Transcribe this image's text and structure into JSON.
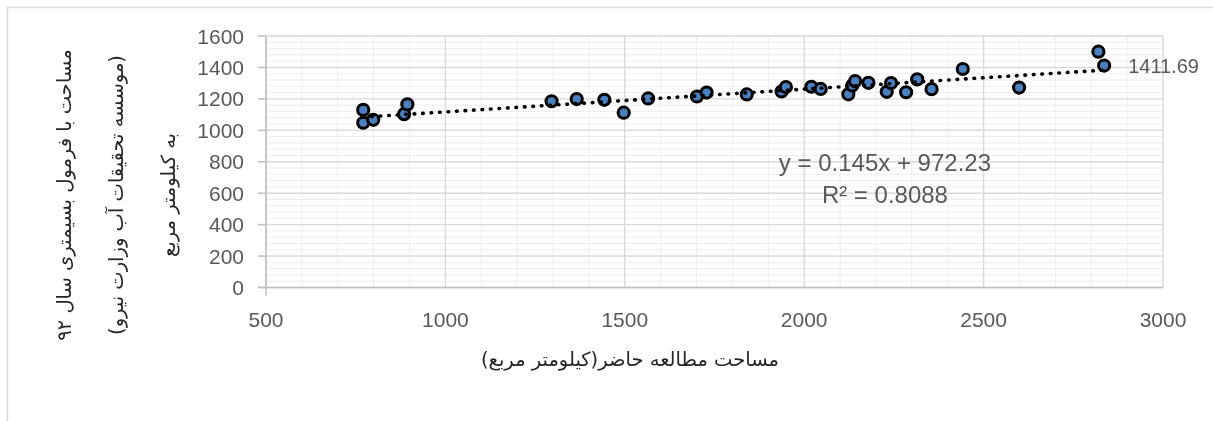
{
  "chart_data": {
    "type": "scatter",
    "xlabel": "مساحت مطالعه حاضر(کیلومتر مربع)",
    "ylabel": "مساحت با فرمول بسیمتری سال ۹۲\n(موسسه تحقیقات آب وزارت نیرو)\nبه کیلومتر مربع",
    "xlim": [
      500,
      3000
    ],
    "xticks": [
      500,
      1000,
      1500,
      2000,
      2500,
      3000
    ],
    "ylim": [
      0,
      1600
    ],
    "yticks": [
      0,
      200,
      400,
      600,
      800,
      1000,
      1200,
      1400,
      1600
    ],
    "grid": true,
    "marker": "circle",
    "series": [
      {
        "color": "#4a80c0",
        "x": [
          771,
          771,
          799,
          885,
          894,
          1296,
          1366,
          1443,
          1497,
          1565,
          1701,
          1728,
          1840,
          1937,
          1949,
          2020,
          2046,
          2123,
          2134,
          2142,
          2179,
          2230,
          2242,
          2284,
          2315,
          2355,
          2442,
          2599,
          2820,
          2836
        ],
        "values": [
          1130,
          1048,
          1067,
          1103,
          1165,
          1185,
          1199,
          1194,
          1112,
          1203,
          1215,
          1240,
          1228,
          1247,
          1275,
          1277,
          1263,
          1229,
          1285,
          1313,
          1302,
          1245,
          1301,
          1242,
          1324,
          1262,
          1390,
          1272,
          1500,
          1411.69
        ],
        "value_labels": [
          null,
          null,
          null,
          null,
          null,
          null,
          null,
          null,
          null,
          null,
          null,
          null,
          null,
          null,
          null,
          null,
          null,
          null,
          null,
          null,
          null,
          null,
          null,
          null,
          null,
          null,
          null,
          null,
          null,
          "1411.69"
        ]
      },
      {
        "type": "line",
        "color": "#000000",
        "line_style": "dotted",
        "marker": "none",
        "x": [
          771,
          2836
        ],
        "values": [
          1084,
          1383
        ]
      }
    ],
    "annotations": [
      "y = 0.145x + 972.23",
      "R² = 0.8088"
    ]
  }
}
